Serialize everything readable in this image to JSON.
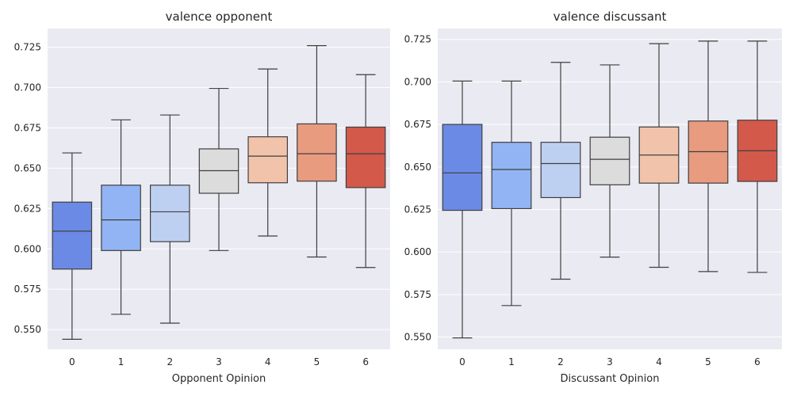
{
  "chart_data": [
    {
      "type": "box",
      "title": "valence opponent",
      "xlabel": "Opponent Opinion",
      "ylabel": "",
      "ylim": [
        0.5378,
        0.7366
      ],
      "yticks": [
        0.55,
        0.575,
        0.6,
        0.625,
        0.65,
        0.675,
        0.7,
        0.725
      ],
      "ytick_labels": [
        "0.550",
        "0.575",
        "0.600",
        "0.625",
        "0.650",
        "0.675",
        "0.700",
        "0.725"
      ],
      "grid": true,
      "categories": [
        "0",
        "1",
        "2",
        "3",
        "4",
        "5",
        "6"
      ],
      "colors": [
        "#6b8ae6",
        "#92b4f4",
        "#bdd0f2",
        "#dcdcdc",
        "#f2c3ab",
        "#e89b7f",
        "#d3594b"
      ],
      "boxes": [
        {
          "whisker_low": 0.544,
          "q1": 0.5875,
          "median": 0.611,
          "q3": 0.629,
          "whisker_high": 0.6595
        },
        {
          "whisker_low": 0.5595,
          "q1": 0.599,
          "median": 0.618,
          "q3": 0.6395,
          "whisker_high": 0.68
        },
        {
          "whisker_low": 0.554,
          "q1": 0.6045,
          "median": 0.623,
          "q3": 0.6395,
          "whisker_high": 0.683
        },
        {
          "whisker_low": 0.599,
          "q1": 0.6345,
          "median": 0.6485,
          "q3": 0.662,
          "whisker_high": 0.6995
        },
        {
          "whisker_low": 0.608,
          "q1": 0.641,
          "median": 0.6575,
          "q3": 0.6695,
          "whisker_high": 0.7115
        },
        {
          "whisker_low": 0.595,
          "q1": 0.642,
          "median": 0.659,
          "q3": 0.6775,
          "whisker_high": 0.726
        },
        {
          "whisker_low": 0.5885,
          "q1": 0.638,
          "median": 0.659,
          "q3": 0.6755,
          "whisker_high": 0.708
        }
      ]
    },
    {
      "type": "box",
      "title": "valence discussant",
      "xlabel": "Discussant Opinion",
      "ylabel": "",
      "ylim": [
        0.5428,
        0.7314
      ],
      "yticks": [
        0.55,
        0.575,
        0.6,
        0.625,
        0.65,
        0.675,
        0.7,
        0.725
      ],
      "ytick_labels": [
        "0.550",
        "0.575",
        "0.600",
        "0.625",
        "0.650",
        "0.675",
        "0.700",
        "0.725"
      ],
      "grid": true,
      "categories": [
        "0",
        "1",
        "2",
        "3",
        "4",
        "5",
        "6"
      ],
      "colors": [
        "#6b8ae6",
        "#92b4f4",
        "#bdd0f2",
        "#dcdcdc",
        "#f2c3ab",
        "#e89b7f",
        "#d3594b"
      ],
      "boxes": [
        {
          "whisker_low": 0.5495,
          "q1": 0.6245,
          "median": 0.6465,
          "q3": 0.675,
          "whisker_high": 0.7005
        },
        {
          "whisker_low": 0.5685,
          "q1": 0.6255,
          "median": 0.6485,
          "q3": 0.6645,
          "whisker_high": 0.7005
        },
        {
          "whisker_low": 0.584,
          "q1": 0.632,
          "median": 0.652,
          "q3": 0.6645,
          "whisker_high": 0.7115
        },
        {
          "whisker_low": 0.597,
          "q1": 0.6395,
          "median": 0.6545,
          "q3": 0.6675,
          "whisker_high": 0.71
        },
        {
          "whisker_low": 0.591,
          "q1": 0.6405,
          "median": 0.657,
          "q3": 0.6735,
          "whisker_high": 0.7225
        },
        {
          "whisker_low": 0.5885,
          "q1": 0.6405,
          "median": 0.659,
          "q3": 0.677,
          "whisker_high": 0.724
        },
        {
          "whisker_low": 0.588,
          "q1": 0.6415,
          "median": 0.6595,
          "q3": 0.6775,
          "whisker_high": 0.724
        }
      ]
    }
  ]
}
